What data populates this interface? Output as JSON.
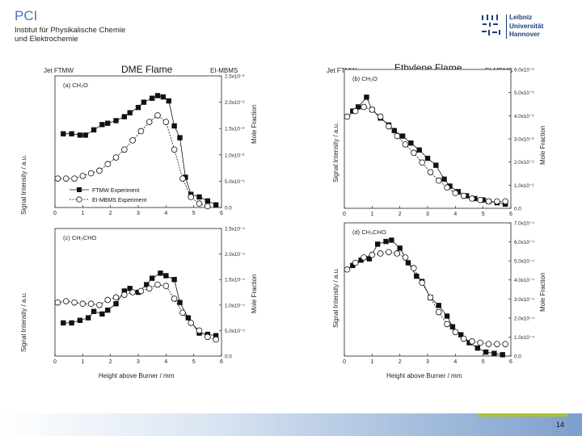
{
  "header": {
    "title": "PCI",
    "subtitle_line1": "Institut für Physikalische Chemie",
    "subtitle_line2": "und Elektrochemie"
  },
  "logo": {
    "line1": "Leibniz",
    "line2": "Universität",
    "line3": "Hannover"
  },
  "blocks": {
    "dme": {
      "title": "DME Flame",
      "left_tag": "Jet FTMW",
      "right_tag": "EI-MBMS"
    },
    "ethylene": {
      "title": "Ethylene Flame",
      "left_tag": "Jet FTMW",
      "right_tag": "EI-MBMS"
    }
  },
  "axes": {
    "ylabel_left": "Signal Intensity / a.u.",
    "ylabel_right": "Mole Fraction",
    "xlabel": "Height above Burner / mm"
  },
  "legend": {
    "series1": "FTMW Experiment",
    "series2": "EI-MBMS Experiment"
  },
  "footer": {
    "page": "14"
  },
  "chart_data": [
    {
      "id": "a",
      "type": "line",
      "panel_label": "(a) CH₂O",
      "xlim": [
        0,
        6
      ],
      "xticks": [
        "0",
        "1",
        "2",
        "3",
        "4",
        "5",
        "6"
      ],
      "right_ylim": [
        0,
        0.025
      ],
      "right_yticks": [
        "0.0",
        "5.0x10⁻³",
        "1.0x10⁻²",
        "1.5x10⁻²",
        "2.0x10⁻²",
        "2.5x10⁻²"
      ],
      "series": [
        {
          "name": "FTMW Experiment",
          "marker": "square",
          "x": [
            0.3,
            0.6,
            0.9,
            1.1,
            1.4,
            1.7,
            1.9,
            2.2,
            2.5,
            2.7,
            3.0,
            3.2,
            3.5,
            3.7,
            3.9,
            4.1,
            4.3,
            4.5,
            4.7,
            4.9,
            5.2,
            5.5,
            5.8
          ],
          "y": [
            0.56,
            0.56,
            0.55,
            0.55,
            0.59,
            0.63,
            0.64,
            0.66,
            0.69,
            0.72,
            0.76,
            0.8,
            0.83,
            0.85,
            0.84,
            0.81,
            0.62,
            0.53,
            0.23,
            0.1,
            0.08,
            0.05,
            0.02
          ]
        },
        {
          "name": "EI-MBMS Experiment",
          "marker": "circle",
          "x": [
            0.1,
            0.4,
            0.7,
            1.0,
            1.3,
            1.6,
            1.9,
            2.2,
            2.5,
            2.8,
            3.1,
            3.4,
            3.7,
            4.0,
            4.3,
            4.6,
            4.9,
            5.2,
            5.5
          ],
          "y": [
            0.22,
            0.22,
            0.22,
            0.24,
            0.26,
            0.28,
            0.33,
            0.38,
            0.44,
            0.51,
            0.58,
            0.65,
            0.7,
            0.65,
            0.44,
            0.22,
            0.08,
            0.03,
            0.01
          ]
        }
      ]
    },
    {
      "id": "b",
      "type": "line",
      "panel_label": "(b) CH₂O",
      "xlim": [
        0,
        6
      ],
      "xticks": [
        "0",
        "1",
        "2",
        "3",
        "4",
        "5",
        "6"
      ],
      "right_ylim": [
        0,
        0.006
      ],
      "right_yticks": [
        "0.0",
        "1.0x10⁻³",
        "2.0x10⁻³",
        "3.0x10⁻³",
        "4.0x10⁻³",
        "5.0x10⁻³",
        "6.0x10⁻³"
      ],
      "series": [
        {
          "name": "FTMW Experiment",
          "marker": "square",
          "x": [
            0.3,
            0.5,
            0.8,
            1.0,
            1.3,
            1.6,
            1.8,
            2.1,
            2.4,
            2.7,
            3.0,
            3.3,
            3.6,
            3.8,
            4.1,
            4.4,
            4.7,
            5.0,
            5.2,
            5.5,
            5.8
          ],
          "y": [
            0.7,
            0.73,
            0.8,
            0.71,
            0.65,
            0.6,
            0.56,
            0.52,
            0.47,
            0.42,
            0.36,
            0.31,
            0.21,
            0.16,
            0.12,
            0.09,
            0.07,
            0.06,
            0.05,
            0.04,
            0.03
          ]
        },
        {
          "name": "EI-MBMS Experiment",
          "marker": "circle",
          "x": [
            0.1,
            0.4,
            0.7,
            1.0,
            1.3,
            1.6,
            1.9,
            2.2,
            2.5,
            2.8,
            3.1,
            3.4,
            3.7,
            4.0,
            4.3,
            4.6,
            4.9,
            5.2,
            5.5,
            5.8
          ],
          "y": [
            0.66,
            0.7,
            0.73,
            0.71,
            0.66,
            0.59,
            0.52,
            0.46,
            0.4,
            0.33,
            0.26,
            0.2,
            0.15,
            0.11,
            0.09,
            0.07,
            0.06,
            0.05,
            0.05,
            0.05
          ]
        }
      ]
    },
    {
      "id": "c",
      "type": "line",
      "panel_label": "(c) CH₃CHO",
      "xlim": [
        0,
        6
      ],
      "xticks": [
        "0",
        "1",
        "2",
        "3",
        "4",
        "5",
        "6"
      ],
      "right_ylim": [
        0,
        0.00025
      ],
      "right_yticks": [
        "0.0",
        "5.0x10⁻⁵",
        "1.0x10⁻⁴",
        "1.5x10⁻⁴",
        "2.0x10⁻⁴",
        "2.5x10⁻⁴"
      ],
      "series": [
        {
          "name": "FTMW Experiment",
          "marker": "square",
          "x": [
            0.3,
            0.6,
            0.9,
            1.2,
            1.4,
            1.7,
            1.9,
            2.2,
            2.5,
            2.7,
            3.0,
            3.3,
            3.5,
            3.8,
            4.0,
            4.3,
            4.5,
            4.8,
            5.2,
            5.5,
            5.8
          ],
          "y": [
            0.26,
            0.26,
            0.28,
            0.3,
            0.35,
            0.33,
            0.36,
            0.41,
            0.51,
            0.53,
            0.5,
            0.56,
            0.61,
            0.65,
            0.63,
            0.6,
            0.42,
            0.3,
            0.18,
            0.17,
            0.16
          ]
        },
        {
          "name": "EI-MBMS Experiment",
          "marker": "circle",
          "x": [
            0.1,
            0.4,
            0.7,
            1.0,
            1.3,
            1.6,
            1.9,
            2.2,
            2.5,
            2.8,
            3.1,
            3.4,
            3.7,
            4.0,
            4.3,
            4.6,
            4.9,
            5.2,
            5.5,
            5.8
          ],
          "y": [
            0.42,
            0.43,
            0.42,
            0.41,
            0.41,
            0.4,
            0.44,
            0.46,
            0.48,
            0.5,
            0.51,
            0.53,
            0.56,
            0.55,
            0.45,
            0.34,
            0.26,
            0.2,
            0.15,
            0.13
          ]
        }
      ]
    },
    {
      "id": "d",
      "type": "line",
      "panel_label": "(d) CH₃CHO",
      "xlim": [
        0,
        6
      ],
      "xticks": [
        "0",
        "1",
        "2",
        "3",
        "4",
        "5",
        "6"
      ],
      "right_ylim": [
        0,
        0.0007
      ],
      "right_yticks": [
        "0.0",
        "1.0x10⁻⁴",
        "2.0x10⁻⁴",
        "3.0x10⁻⁴",
        "4.0x10⁻⁴",
        "5.0x10⁻⁴",
        "6.0x10⁻⁴",
        "7.0x10⁻⁴"
      ],
      "series": [
        {
          "name": "FTMW Experiment",
          "marker": "square",
          "x": [
            0.3,
            0.6,
            0.9,
            1.2,
            1.5,
            1.7,
            2.0,
            2.3,
            2.6,
            2.8,
            3.1,
            3.4,
            3.7,
            3.9,
            4.2,
            4.5,
            4.8,
            5.1,
            5.4,
            5.7
          ],
          "y": [
            0.68,
            0.72,
            0.73,
            0.84,
            0.86,
            0.87,
            0.81,
            0.7,
            0.6,
            0.56,
            0.44,
            0.38,
            0.3,
            0.22,
            0.16,
            0.1,
            0.06,
            0.03,
            0.02,
            0.01
          ]
        },
        {
          "name": "EI-MBMS Experiment",
          "marker": "circle",
          "x": [
            0.1,
            0.4,
            0.7,
            1.0,
            1.3,
            1.6,
            1.9,
            2.2,
            2.5,
            2.8,
            3.1,
            3.4,
            3.7,
            4.0,
            4.3,
            4.6,
            4.9,
            5.2,
            5.5,
            5.8
          ],
          "y": [
            0.65,
            0.7,
            0.74,
            0.76,
            0.77,
            0.78,
            0.77,
            0.74,
            0.66,
            0.55,
            0.44,
            0.33,
            0.24,
            0.18,
            0.13,
            0.11,
            0.1,
            0.09,
            0.09,
            0.09
          ]
        }
      ]
    }
  ]
}
